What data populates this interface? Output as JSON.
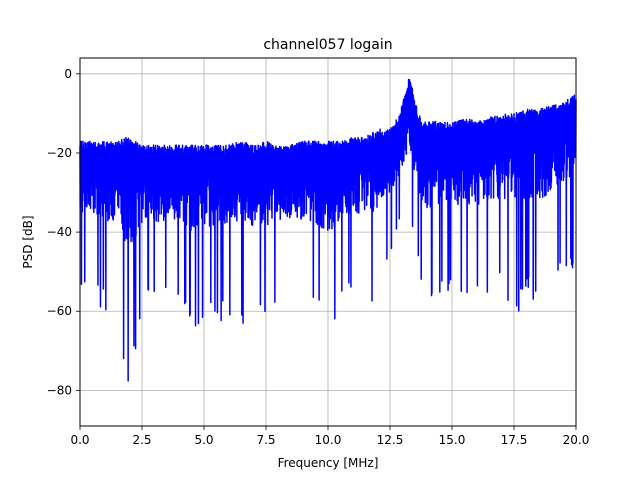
{
  "chart_data": {
    "type": "line",
    "title": "channel057 logain",
    "xlabel": "Frequency [MHz]",
    "ylabel": "PSD [dB]",
    "xlim": [
      0,
      20
    ],
    "ylim": [
      -89,
      4
    ],
    "grid": true,
    "x_ticks": [
      0,
      2.5,
      5,
      7.5,
      10,
      12.5,
      15,
      17.5,
      20
    ],
    "x_tick_labels": [
      "0.0",
      "2.5",
      "5.0",
      "7.5",
      "10.0",
      "12.5",
      "15.0",
      "17.5",
      "20.0"
    ],
    "y_ticks": [
      0,
      -20,
      -40,
      -60,
      -80
    ],
    "y_tick_labels": [
      "0",
      "−20",
      "−40",
      "−60",
      "−80"
    ],
    "series": [
      {
        "color": "#0000ff",
        "x": [
          0.0,
          0.5,
          1.0,
          1.5,
          1.9,
          2.5,
          3.0,
          3.5,
          4.0,
          4.5,
          5.0,
          5.5,
          6.0,
          6.5,
          7.0,
          7.5,
          8.0,
          8.5,
          9.0,
          9.5,
          10.0,
          10.5,
          11.0,
          11.5,
          12.0,
          12.5,
          12.9,
          13.1,
          13.3,
          13.5,
          13.8,
          14.0,
          14.5,
          15.0,
          15.5,
          16.0,
          16.5,
          17.0,
          17.5,
          18.0,
          18.5,
          19.0,
          19.5,
          19.8,
          20.0
        ],
        "upper": [
          -17,
          -17,
          -17,
          -17,
          -16,
          -18,
          -18,
          -18,
          -18,
          -18,
          -18,
          -18,
          -18,
          -17,
          -18,
          -17,
          -18,
          -18,
          -17,
          -17,
          -17,
          -17,
          -16,
          -16,
          -14,
          -14,
          -10,
          -5,
          0,
          -7,
          -12,
          -12,
          -12,
          -12,
          -11,
          -12,
          -11,
          -10,
          -10,
          -9,
          -9,
          -8,
          -7,
          -6,
          -5
        ],
        "lower": [
          -54,
          -57,
          -60,
          -59,
          -85,
          -59,
          -60,
          -59,
          -58,
          -66,
          -62,
          -64,
          -62,
          -63,
          -64,
          -63,
          -58,
          -60,
          -58,
          -61,
          -68,
          -59,
          -56,
          -57,
          -60,
          -45,
          -40,
          -38,
          -37,
          -45,
          -56,
          -59,
          -58,
          -58,
          -57,
          -58,
          -55,
          -56,
          -62,
          -57,
          -58,
          -56,
          -52,
          -50,
          -48
        ]
      }
    ]
  }
}
